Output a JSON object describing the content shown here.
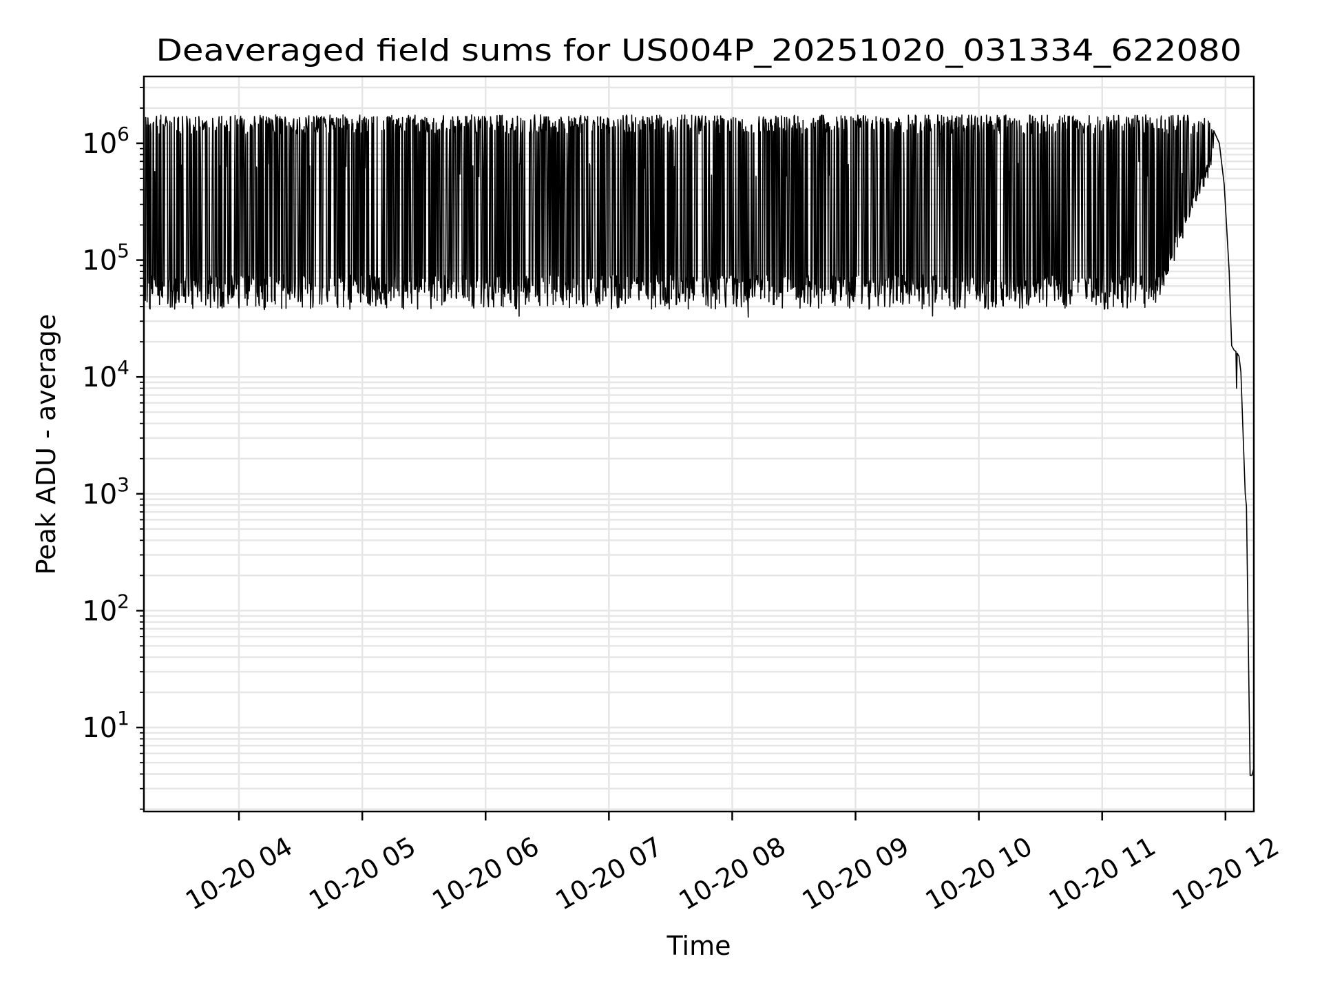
{
  "chart_data": {
    "type": "line",
    "title": "Deaveraged field sums for US004P_20251020_031334_622080",
    "xlabel": "Time",
    "ylabel": "Peak ADU - average",
    "yscale": "log",
    "xlim_hours": [
      3.229,
      12.23
    ],
    "ylim": [
      1.91,
      3730000
    ],
    "grid": true,
    "x_ticks": [
      {
        "hour": 4,
        "label": "10-20 04"
      },
      {
        "hour": 5,
        "label": "10-20 05"
      },
      {
        "hour": 6,
        "label": "10-20 06"
      },
      {
        "hour": 7,
        "label": "10-20 07"
      },
      {
        "hour": 8,
        "label": "10-20 08"
      },
      {
        "hour": 9,
        "label": "10-20 09"
      },
      {
        "hour": 10,
        "label": "10-20 10"
      },
      {
        "hour": 11,
        "label": "10-20 11"
      },
      {
        "hour": 12,
        "label": "10-20 12"
      }
    ],
    "y_ticks": [
      {
        "value": 10,
        "base": "10",
        "exp": "1"
      },
      {
        "value": 100,
        "base": "10",
        "exp": "2"
      },
      {
        "value": 1000,
        "base": "10",
        "exp": "3"
      },
      {
        "value": 10000,
        "base": "10",
        "exp": "4"
      },
      {
        "value": 100000,
        "base": "10",
        "exp": "5"
      },
      {
        "value": 1000000,
        "base": "10",
        "exp": "6"
      }
    ],
    "series": [
      {
        "name": "field sums",
        "color": "#000000",
        "oscillating_segment": {
          "start_hour": 3.23,
          "end_hour": 11.9,
          "high_range": [
            1200000,
            1750000
          ],
          "low_range": [
            38000,
            75000
          ],
          "ramp_start_hour": 11.45,
          "ramp_end_low": 800000
        },
        "tail": {
          "hours": [
            11.905,
            11.95,
            11.99,
            12.03,
            12.05,
            12.07,
            12.085,
            12.09,
            12.095,
            12.11,
            12.125,
            12.16,
            12.17,
            12.2,
            12.215,
            12.23
          ],
          "values": [
            1280000,
            1000000,
            440000,
            80000,
            18500,
            17000,
            16500,
            8000,
            16000,
            15000,
            11000,
            1000,
            780,
            3.9,
            3.9,
            4.5
          ]
        }
      }
    ]
  }
}
